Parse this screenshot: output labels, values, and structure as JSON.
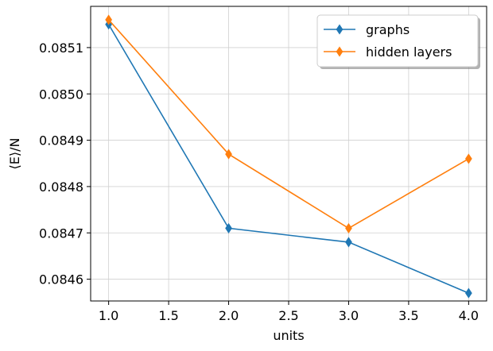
{
  "chart_data": {
    "type": "line",
    "xlabel": "units",
    "ylabel": "⟨E⟩/N",
    "xlim": [
      0.85,
      4.15
    ],
    "ylim": [
      0.084553,
      0.085189
    ],
    "xticks": [
      1.0,
      1.5,
      2.0,
      2.5,
      3.0,
      3.5,
      4.0
    ],
    "xtick_labels": [
      "1.0",
      "1.5",
      "2.0",
      "2.5",
      "3.0",
      "3.5",
      "4.0"
    ],
    "yticks": [
      0.0846,
      0.0847,
      0.0848,
      0.0849,
      0.085,
      0.0851
    ],
    "ytick_labels": [
      "0.0846",
      "0.0847",
      "0.0848",
      "0.0849",
      "0.0850",
      "0.0851"
    ],
    "grid": true,
    "legend_position": "top-right",
    "x": [
      1.0,
      2.0,
      3.0,
      4.0
    ],
    "series": [
      {
        "name": "graphs",
        "color": "#1f77b4",
        "marker": "thin-diamond",
        "values": [
          0.08515,
          0.08471,
          0.08468,
          0.08457
        ]
      },
      {
        "name": "hidden layers",
        "color": "#ff7f0e",
        "marker": "thin-diamond",
        "values": [
          0.08516,
          0.08487,
          0.08471,
          0.08486
        ]
      }
    ]
  }
}
